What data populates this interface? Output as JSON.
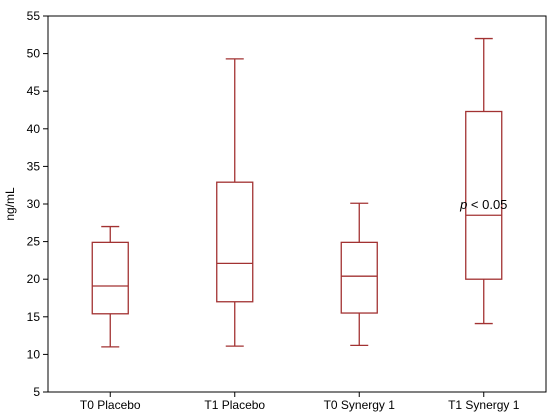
{
  "chart_data": {
    "type": "box",
    "title": "",
    "xlabel": "",
    "ylabel": "ng/mL",
    "ylim": [
      5,
      55
    ],
    "yticks": [
      5,
      10,
      15,
      20,
      25,
      30,
      35,
      40,
      45,
      50,
      55
    ],
    "ytick_labels": [
      "5",
      "10",
      "15",
      "20",
      "25",
      "30",
      "35",
      "40",
      "45",
      "50",
      "55"
    ],
    "grid": false,
    "categories": [
      "T0 Placebo",
      "T1 Placebo",
      "T0 Synergy 1",
      "T1 Synergy 1"
    ],
    "boxes": [
      {
        "category": "T0 Placebo",
        "min": 11.0,
        "q1": 15.4,
        "median": 19.1,
        "q3": 24.9,
        "max": 27.0
      },
      {
        "category": "T1 Placebo",
        "min": 11.1,
        "q1": 17.0,
        "median": 22.1,
        "q3": 32.9,
        "max": 49.3
      },
      {
        "category": "T0 Synergy 1",
        "min": 11.2,
        "q1": 15.5,
        "median": 20.4,
        "q3": 24.9,
        "max": 30.1
      },
      {
        "category": "T1 Synergy 1",
        "min": 14.1,
        "q1": 20.0,
        "median": 28.5,
        "q3": 42.3,
        "max": 52.0
      }
    ],
    "annotations": [
      {
        "text_italic": "p",
        "text": " < 0.05",
        "category": "T1 Synergy 1",
        "y": 30
      }
    ],
    "colors": {
      "box": "#a23232",
      "axis": "#000000"
    }
  }
}
